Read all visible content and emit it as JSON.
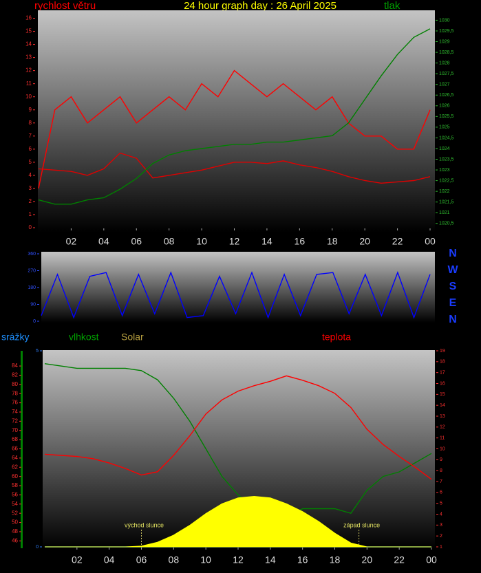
{
  "chart_data": [
    {
      "type": "line",
      "title": "24 hour graph day : 26 April 2025",
      "y_label": "rychlost větru",
      "y2_label": "tlak",
      "x": [
        0,
        1,
        2,
        3,
        4,
        5,
        6,
        7,
        8,
        9,
        10,
        11,
        12,
        13,
        14,
        15,
        16,
        17,
        18,
        19,
        20,
        21,
        22,
        23,
        24
      ],
      "xlim": [
        0,
        24
      ],
      "xticks": [
        {
          "value": 2,
          "label": "02"
        },
        {
          "value": 4,
          "label": "04"
        },
        {
          "value": 6,
          "label": "06"
        },
        {
          "value": 8,
          "label": "08"
        },
        10,
        12,
        14,
        16,
        18,
        20,
        22,
        {
          "value": 24,
          "label": "00"
        }
      ],
      "ylim": [
        0,
        16.5
      ],
      "yticks": [
        0,
        1,
        2,
        3,
        4,
        5,
        6,
        7,
        8,
        9,
        10,
        11,
        12,
        13,
        14,
        15,
        16
      ],
      "y2lim": [
        1020.3,
        1030.4
      ],
      "y2ticks": [
        {
          "value": 1020.5,
          "label": "1020,5"
        },
        1021,
        {
          "value": 1021.5,
          "label": "1021,5"
        },
        1022,
        {
          "value": 1022.5,
          "label": "1022,5"
        },
        1023,
        {
          "value": 1023.5,
          "label": "1023,5"
        },
        1024,
        {
          "value": 1024.5,
          "label": "1024,5"
        },
        1025,
        {
          "value": 1025.5,
          "label": "1025,5"
        },
        1026,
        {
          "value": 1026.5,
          "label": "1026,5"
        },
        1027,
        {
          "value": 1027.5,
          "label": "1027,5"
        },
        1028,
        {
          "value": 1028.5,
          "label": "1028,5"
        },
        1029,
        {
          "value": 1029.5,
          "label": "1029,5"
        },
        1030
      ],
      "series": [
        {
          "color": "#ff0000",
          "values": [
            3,
            9,
            10,
            8,
            9,
            10,
            8,
            9,
            10,
            9,
            11,
            10,
            12,
            11,
            10,
            11,
            10,
            9,
            10,
            8,
            7,
            7,
            6,
            6,
            9
          ]
        },
        {
          "color": "#e00000",
          "values": [
            4.5,
            4.4,
            4.3,
            4,
            4.5,
            5.7,
            5.3,
            3.8,
            4,
            4.2,
            4.4,
            4.7,
            5,
            5,
            4.9,
            5.1,
            4.8,
            4.6,
            4.3,
            3.9,
            3.6,
            3.4,
            3.5,
            3.6,
            3.9
          ]
        },
        {
          "color": "#008000",
          "axis": "y2",
          "values": [
            1021.6,
            1021.4,
            1021.4,
            1021.6,
            1021.7,
            1022.1,
            1022.6,
            1023.3,
            1023.7,
            1023.9,
            1024.0,
            1024.1,
            1024.2,
            1024.2,
            1024.3,
            1024.3,
            1024.4,
            1024.5,
            1024.6,
            1025.2,
            1026.3,
            1027.4,
            1028.4,
            1029.2,
            1029.6
          ]
        }
      ]
    },
    {
      "type": "line",
      "x": [
        0,
        1,
        2,
        3,
        4,
        5,
        6,
        7,
        8,
        9,
        10,
        11,
        12,
        13,
        14,
        15,
        16,
        17,
        18,
        19,
        20,
        21,
        22,
        23,
        24
      ],
      "xlim": [
        0,
        24
      ],
      "ylim": [
        0,
        360
      ],
      "yticks": [
        0,
        90,
        180,
        270,
        360
      ],
      "compass": [
        "N",
        "W",
        "S",
        "E",
        "N"
      ],
      "series": [
        {
          "color": "#0000ff",
          "values": [
            30,
            250,
            20,
            240,
            260,
            30,
            250,
            40,
            260,
            20,
            30,
            240,
            40,
            260,
            20,
            250,
            30,
            250,
            260,
            40,
            250,
            30,
            260,
            20,
            250
          ]
        }
      ]
    },
    {
      "type": "line",
      "x": [
        0,
        1,
        2,
        3,
        4,
        5,
        6,
        7,
        8,
        9,
        10,
        11,
        12,
        13,
        14,
        15,
        16,
        17,
        18,
        19,
        20,
        21,
        22,
        23,
        24
      ],
      "xlim": [
        0,
        24
      ],
      "xticks": [
        {
          "value": 2,
          "label": "02"
        },
        {
          "value": 4,
          "label": "04"
        },
        {
          "value": 6,
          "label": "06"
        },
        {
          "value": 8,
          "label": "08"
        },
        10,
        12,
        14,
        16,
        18,
        20,
        22,
        {
          "value": 24,
          "label": "00"
        }
      ],
      "ylim": [
        44.7,
        87.3
      ],
      "yticks": [
        46,
        48,
        50,
        52,
        54,
        56,
        58,
        60,
        62,
        64,
        66,
        68,
        70,
        72,
        74,
        76,
        78,
        80,
        82,
        84
      ],
      "y2lim": [
        1,
        19
      ],
      "y2ticks": [
        1,
        2,
        3,
        4,
        5,
        6,
        7,
        8,
        9,
        10,
        11,
        12,
        13,
        14,
        15,
        16,
        17,
        18,
        19
      ],
      "y3lim": [
        0,
        5
      ],
      "y3ticks": [
        0,
        5
      ],
      "series": [
        {
          "name": "srážky",
          "color": "#1e90ff",
          "axis": "y3",
          "values": [
            0,
            0,
            0,
            0,
            0,
            0,
            0,
            0,
            0,
            0,
            0,
            0,
            0,
            0,
            0,
            0,
            0,
            0,
            0,
            0,
            0,
            0,
            0,
            0,
            0
          ]
        },
        {
          "name": "vlhkost",
          "color": "#008000",
          "values": [
            84.5,
            84,
            83.5,
            83.5,
            83.5,
            83.5,
            83,
            81,
            77,
            72,
            66,
            60,
            56,
            53,
            51,
            51,
            53,
            53,
            53,
            52,
            57,
            60,
            61,
            63,
            65
          ]
        },
        {
          "name": "Solar",
          "color": "#ffff00",
          "axis": "y3",
          "fill": true,
          "values": [
            0,
            0,
            0,
            0,
            0,
            0,
            0.02,
            0.12,
            0.3,
            0.55,
            0.85,
            1.1,
            1.25,
            1.29,
            1.25,
            1.1,
            0.9,
            0.65,
            0.35,
            0.1,
            0,
            0,
            0,
            0,
            0
          ]
        },
        {
          "name": "teplota",
          "color": "#ff0000",
          "axis": "y2",
          "values": [
            9.5,
            9.4,
            9.3,
            9.1,
            8.7,
            8.2,
            7.6,
            7.9,
            9.4,
            11.2,
            13.2,
            14.5,
            15.3,
            15.8,
            16.2,
            16.7,
            16.3,
            15.8,
            15.1,
            13.8,
            11.8,
            10.4,
            9.3,
            8.3,
            7.2
          ]
        }
      ],
      "annotations": [
        {
          "x": 6,
          "text": "východ slunce"
        },
        {
          "x": 19.5,
          "text": "západ slunce"
        }
      ]
    }
  ]
}
